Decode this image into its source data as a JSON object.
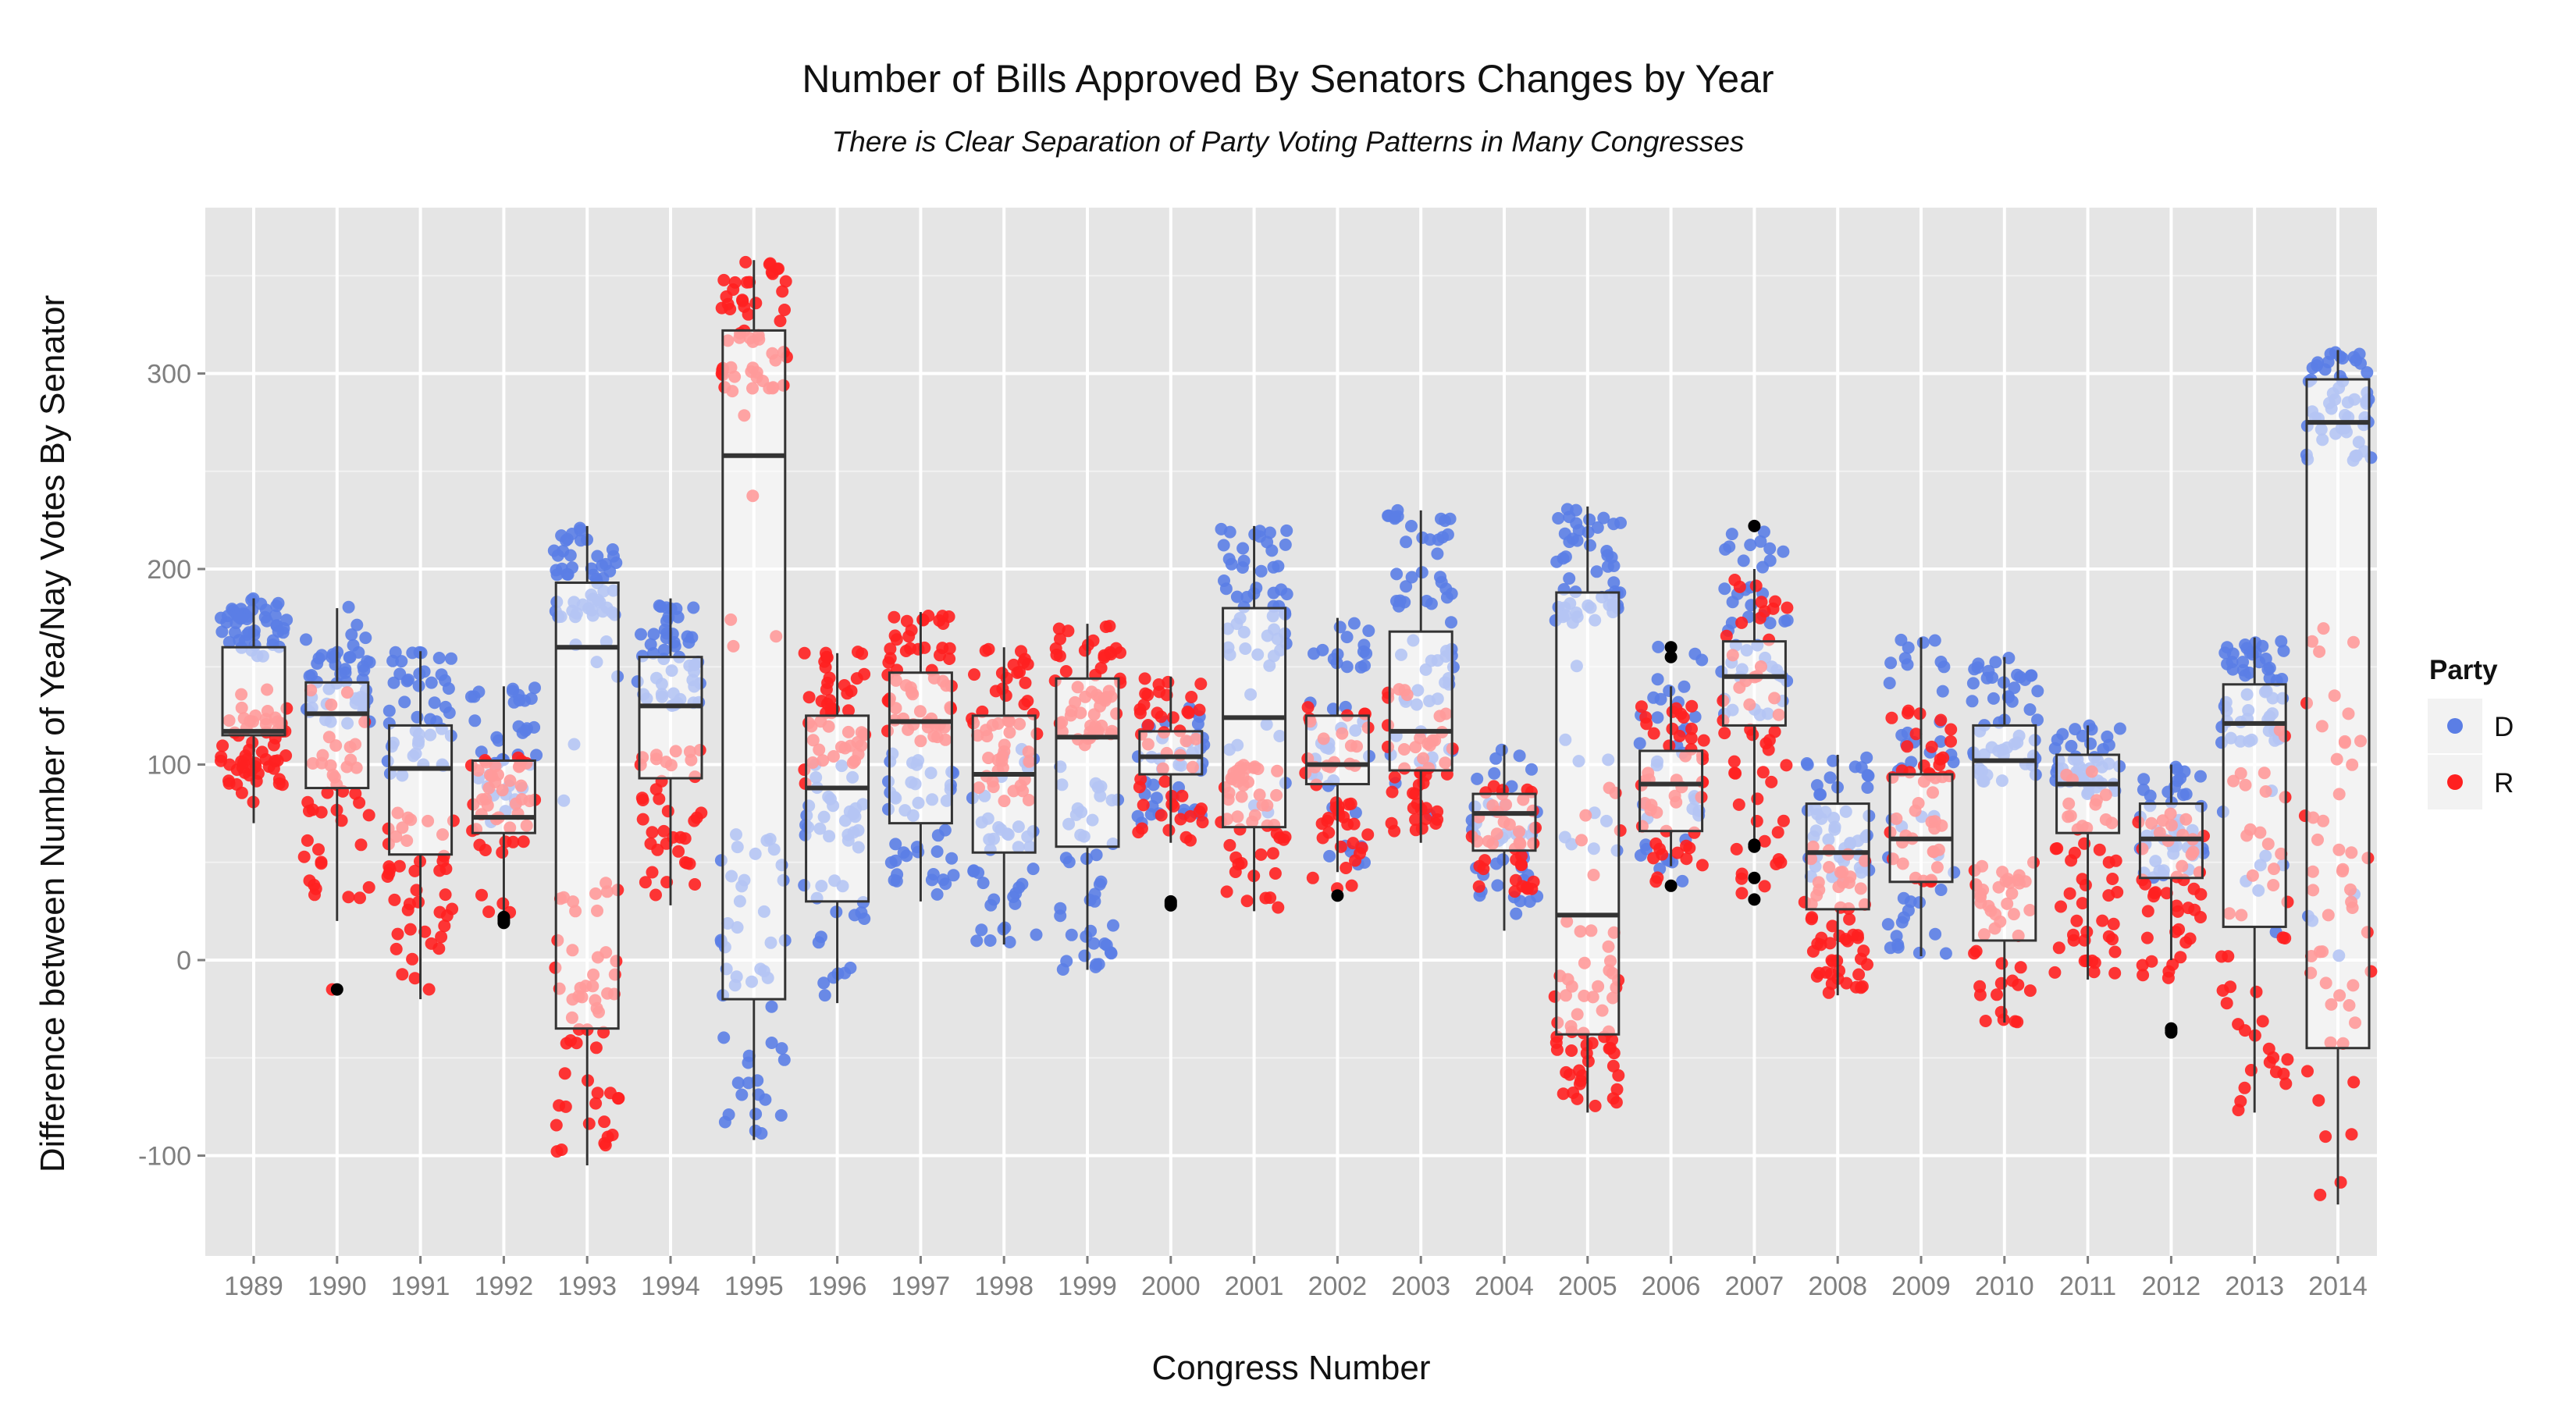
{
  "chart_data": {
    "type": "boxplot-jitter",
    "title": "Number of Bills Approved By Senators Changes by Year",
    "subtitle": "There is Clear Separation of Party Voting Patterns in Many Congresses",
    "xlabel": "Congress Number",
    "ylabel": "Difference between Number of Yea/Nay Votes By Senator",
    "ylim": [
      -152,
      377
    ],
    "yticks": [
      -100,
      0,
      100,
      200,
      300
    ],
    "grid": true,
    "legend": {
      "title": "Party",
      "position": "right",
      "entries": [
        "D",
        "R"
      ]
    },
    "colors": {
      "D": "#5b7ee5",
      "R": "#ff2020",
      "panel": "#e5e5e5",
      "grid": "#ffffff",
      "outlier": "#000000",
      "box": "#333333"
    },
    "categories": [
      "1989",
      "1990",
      "1991",
      "1992",
      "1993",
      "1994",
      "1995",
      "1996",
      "1997",
      "1998",
      "1999",
      "2000",
      "2001",
      "2002",
      "2003",
      "2004",
      "2005",
      "2006",
      "2007",
      "2008",
      "2009",
      "2010",
      "2011",
      "2012",
      "2013",
      "2014"
    ],
    "boxes": [
      {
        "year": "1989",
        "q1": 115,
        "median": 117,
        "q3": 160,
        "wlo": 70,
        "whi": 185,
        "outliers": []
      },
      {
        "year": "1990",
        "q1": 88,
        "median": 126,
        "q3": 142,
        "wlo": 20,
        "whi": 180,
        "outliers": [
          -15
        ]
      },
      {
        "year": "1991",
        "q1": 54,
        "median": 98,
        "q3": 120,
        "wlo": -20,
        "whi": 158,
        "outliers": []
      },
      {
        "year": "1992",
        "q1": 65,
        "median": 73,
        "q3": 102,
        "wlo": 25,
        "whi": 140,
        "outliers": [
          21,
          20,
          19,
          22
        ]
      },
      {
        "year": "1993",
        "q1": -35,
        "median": 160,
        "q3": 193,
        "wlo": -105,
        "whi": 222,
        "outliers": []
      },
      {
        "year": "1994",
        "q1": 93,
        "median": 130,
        "q3": 155,
        "wlo": 28,
        "whi": 185,
        "outliers": []
      },
      {
        "year": "1995",
        "q1": -20,
        "median": 258,
        "q3": 322,
        "wlo": -92,
        "whi": 358,
        "outliers": []
      },
      {
        "year": "1996",
        "q1": 30,
        "median": 88,
        "q3": 125,
        "wlo": -22,
        "whi": 157,
        "outliers": []
      },
      {
        "year": "1997",
        "q1": 70,
        "median": 122,
        "q3": 147,
        "wlo": 30,
        "whi": 178,
        "outliers": []
      },
      {
        "year": "1998",
        "q1": 55,
        "median": 95,
        "q3": 125,
        "wlo": 8,
        "whi": 160,
        "outliers": []
      },
      {
        "year": "1999",
        "q1": 58,
        "median": 114,
        "q3": 144,
        "wlo": -5,
        "whi": 172,
        "outliers": []
      },
      {
        "year": "2000",
        "q1": 95,
        "median": 104,
        "q3": 117,
        "wlo": 60,
        "whi": 145,
        "outliers": [
          29,
          28,
          30
        ]
      },
      {
        "year": "2001",
        "q1": 68,
        "median": 124,
        "q3": 180,
        "wlo": 25,
        "whi": 222,
        "outliers": []
      },
      {
        "year": "2002",
        "q1": 90,
        "median": 100,
        "q3": 125,
        "wlo": 45,
        "whi": 175,
        "outliers": [
          33
        ]
      },
      {
        "year": "2003",
        "q1": 97,
        "median": 117,
        "q3": 168,
        "wlo": 60,
        "whi": 230,
        "outliers": []
      },
      {
        "year": "2004",
        "q1": 56,
        "median": 75,
        "q3": 85,
        "wlo": 15,
        "whi": 110,
        "outliers": []
      },
      {
        "year": "2005",
        "q1": -38,
        "median": 23,
        "q3": 188,
        "wlo": -78,
        "whi": 232,
        "outliers": []
      },
      {
        "year": "2006",
        "q1": 66,
        "median": 90,
        "q3": 107,
        "wlo": 48,
        "whi": 140,
        "outliers": [
          38,
          160,
          155
        ]
      },
      {
        "year": "2007",
        "q1": 120,
        "median": 145,
        "q3": 163,
        "wlo": 62,
        "whi": 200,
        "outliers": [
          222,
          59,
          58,
          42,
          31
        ]
      },
      {
        "year": "2008",
        "q1": 26,
        "median": 55,
        "q3": 80,
        "wlo": -18,
        "whi": 105,
        "outliers": []
      },
      {
        "year": "2009",
        "q1": 40,
        "median": 62,
        "q3": 95,
        "wlo": 2,
        "whi": 165,
        "outliers": []
      },
      {
        "year": "2010",
        "q1": 10,
        "median": 102,
        "q3": 120,
        "wlo": -32,
        "whi": 155,
        "outliers": []
      },
      {
        "year": "2011",
        "q1": 65,
        "median": 90,
        "q3": 105,
        "wlo": -10,
        "whi": 120,
        "outliers": []
      },
      {
        "year": "2012",
        "q1": 42,
        "median": 62,
        "q3": 80,
        "wlo": 0,
        "whi": 100,
        "outliers": [
          -35,
          -36,
          -37
        ]
      },
      {
        "year": "2013",
        "q1": 17,
        "median": 121,
        "q3": 141,
        "wlo": -78,
        "whi": 165,
        "outliers": []
      },
      {
        "year": "2014",
        "q1": -45,
        "median": 275,
        "q3": 297,
        "wlo": -125,
        "whi": 312,
        "outliers": []
      }
    ],
    "points": {
      "1989": {
        "D": [
          [
            155,
            185,
            48
          ]
        ],
        "R": [
          [
            85,
            140,
            48
          ],
          [
            75,
            120,
            10
          ]
        ]
      },
      "1990": {
        "D": [
          [
            120,
            165,
            40
          ],
          [
            130,
            182,
            8
          ]
        ],
        "R": [
          [
            30,
            100,
            30
          ],
          [
            100,
            145,
            12
          ],
          [
            -15,
            -15,
            1
          ]
        ]
      },
      "1991": {
        "D": [
          [
            90,
            160,
            45
          ]
        ],
        "R": [
          [
            0,
            80,
            40
          ],
          [
            -20,
            -2,
            3
          ]
        ]
      },
      "1992": {
        "D": [
          [
            70,
            140,
            38
          ]
        ],
        "R": [
          [
            55,
            105,
            40
          ],
          [
            20,
            35,
            4
          ]
        ]
      },
      "1993": {
        "D": [
          [
            175,
            222,
            52
          ],
          [
            60,
            170,
            6
          ]
        ],
        "R": [
          [
            -100,
            40,
            55
          ]
        ]
      },
      "1994": {
        "D": [
          [
            130,
            185,
            48
          ]
        ],
        "R": [
          [
            25,
            110,
            38
          ]
        ]
      },
      "1995": {
        "D": [
          [
            -92,
            70,
            48
          ]
        ],
        "R": [
          [
            290,
            358,
            55
          ],
          [
            150,
            280,
            5
          ]
        ]
      },
      "1996": {
        "D": [
          [
            -20,
            100,
            45
          ]
        ],
        "R": [
          [
            90,
            158,
            48
          ]
        ]
      },
      "1997": {
        "D": [
          [
            30,
            110,
            42
          ]
        ],
        "R": [
          [
            110,
            178,
            58
          ]
        ]
      },
      "1998": {
        "D": [
          [
            8,
            110,
            42
          ]
        ],
        "R": [
          [
            80,
            160,
            52
          ]
        ]
      },
      "1999": {
        "D": [
          [
            -5,
            100,
            42
          ]
        ],
        "R": [
          [
            110,
            172,
            55
          ]
        ]
      },
      "2000": {
        "D": [
          [
            70,
            130,
            40
          ]
        ],
        "R": [
          [
            60,
            145,
            48
          ]
        ]
      },
      "2001": {
        "D": [
          [
            150,
            222,
            50
          ],
          [
            70,
            150,
            8
          ]
        ],
        "R": [
          [
            25,
            100,
            50
          ]
        ]
      },
      "2002": {
        "D": [
          [
            45,
            175,
            40
          ]
        ],
        "R": [
          [
            35,
            130,
            45
          ]
        ]
      },
      "2003": {
        "D": [
          [
            130,
            230,
            52
          ],
          [
            60,
            130,
            10
          ]
        ],
        "R": [
          [
            65,
            140,
            45
          ]
        ]
      },
      "2004": {
        "D": [
          [
            15,
            110,
            40
          ]
        ],
        "R": [
          [
            35,
            90,
            40
          ]
        ]
      },
      "2005": {
        "D": [
          [
            170,
            232,
            52
          ],
          [
            40,
            170,
            10
          ]
        ],
        "R": [
          [
            -78,
            20,
            55
          ],
          [
            40,
            90,
            6
          ]
        ]
      },
      "2006": {
        "D": [
          [
            40,
            165,
            35
          ]
        ],
        "R": [
          [
            40,
            130,
            48
          ]
        ]
      },
      "2007": {
        "D": [
          [
            120,
            222,
            45
          ]
        ],
        "R": [
          [
            30,
            195,
            50
          ]
        ]
      },
      "2008": {
        "D": [
          [
            40,
            105,
            48
          ]
        ],
        "R": [
          [
            -18,
            60,
            55
          ]
        ]
      },
      "2009": {
        "D": [
          [
            2,
            165,
            45
          ]
        ],
        "R": [
          [
            40,
            130,
            45
          ]
        ]
      },
      "2010": {
        "D": [
          [
            90,
            155,
            52
          ]
        ],
        "R": [
          [
            -32,
            50,
            45
          ]
        ]
      },
      "2011": {
        "D": [
          [
            85,
            120,
            45
          ]
        ],
        "R": [
          [
            -10,
            100,
            48
          ]
        ]
      },
      "2012": {
        "D": [
          [
            40,
            100,
            45
          ]
        ],
        "R": [
          [
            -10,
            75,
            45
          ]
        ]
      },
      "2013": {
        "D": [
          [
            110,
            165,
            52
          ],
          [
            10,
            95,
            8
          ]
        ],
        "R": [
          [
            -78,
            120,
            42
          ]
        ]
      },
      "2014": {
        "D": [
          [
            255,
            312,
            52
          ],
          [
            0,
            40,
            4
          ]
        ],
        "R": [
          [
            -125,
            175,
            50
          ]
        ]
      }
    }
  }
}
